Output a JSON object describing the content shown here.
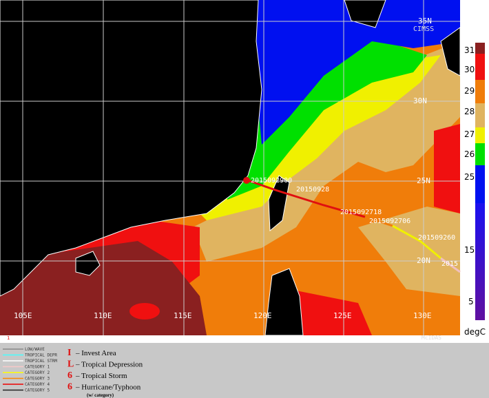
{
  "map": {
    "lat_labels": [
      "35N",
      "30N",
      "25N",
      "20N"
    ],
    "lon_labels": [
      "105E",
      "110E",
      "115E",
      "120E",
      "125E",
      "130E"
    ],
    "track_labels": [
      "2015092900",
      "20150928",
      "2015092718",
      "2015092706",
      "201509260",
      "2015"
    ],
    "logo": "CIMSS",
    "credit": "McIDAS",
    "frame": "1"
  },
  "colorbar": {
    "labels": [
      "31",
      "30",
      "29",
      "28",
      "27",
      "26",
      "25",
      "15",
      "5"
    ],
    "unit": "degC"
  },
  "legend": {
    "tracks": [
      "LOW/WAVE",
      "TROPICAL DEPR",
      "TROPICAL STRM",
      "CATEGORY 1",
      "CATEGORY 2",
      "CATEGORY 3",
      "CATEGORY 4",
      "CATEGORY 5"
    ],
    "symbols": [
      {
        "symbol": "I",
        "text": "– Invest Area"
      },
      {
        "symbol": "L",
        "text": "– Tropical Depression"
      },
      {
        "symbol": "6",
        "text": "– Tropical Storm"
      },
      {
        "symbol": "6",
        "text": "– Hurricane/Typhoon"
      }
    ],
    "note": "(w/ category)"
  }
}
